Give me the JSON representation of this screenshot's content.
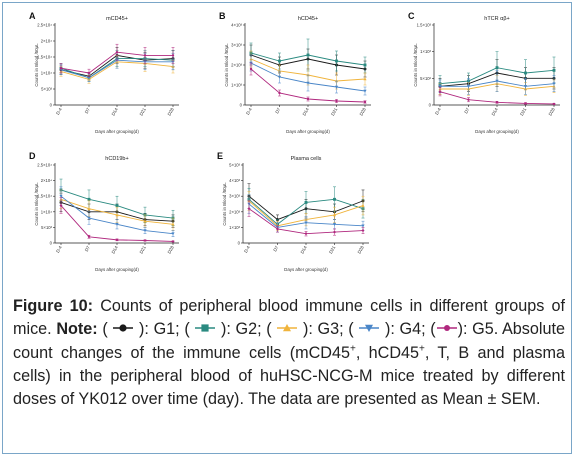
{
  "colors": {
    "G1": "#1a1a1a",
    "G2": "#2a8a80",
    "G3": "#f0b43c",
    "G4": "#4a86c8",
    "G5": "#b0287e",
    "border": "#7aa6c8"
  },
  "caption": {
    "label": "Figure 10:",
    "text1": " Counts of peripheral blood immune cells in different groups of mice. ",
    "note_label": "Note:",
    "legend": [
      {
        "pre": " ( ",
        "group": "G1",
        "post": " ): G1;"
      },
      {
        "pre": " ( ",
        "group": "G2",
        "post": " ): G2;"
      },
      {
        "pre": " ( ",
        "group": "G3",
        "post": " ): G3;"
      },
      {
        "pre": " ( ",
        "group": "G4",
        "post": " ): G4;"
      },
      {
        "pre": " (",
        "group": "G5",
        "post": "): G5."
      }
    ],
    "text2a": " Absolute count changes of the immune cells (mCD45",
    "sup1": "+",
    "text2b": ", hCD45",
    "sup2": "+",
    "text2c": ", T, B and plasma cells) in the peripheral blood of huHSC-NCG-M mice treated by different doses of YK012 over time (day). The data are presented as Mean ± SEM."
  },
  "chart_data": [
    {
      "type": "line",
      "panel": "A",
      "title": "mCD45+",
      "ylabel": "Counts in Blood /50μL",
      "xlabel": "Days after grouping(d)",
      "categories": [
        "D-4",
        "D7",
        "D14",
        "D21",
        "D28"
      ],
      "ylim": [
        0,
        25000
      ],
      "yticks": [
        0,
        5000,
        10000,
        15000,
        20000,
        25000
      ],
      "ytick_labels": [
        "0",
        "5×10³",
        "1×10⁴",
        "1.5×10⁴",
        "2×10⁴",
        "2.5×10⁴"
      ],
      "series": [
        {
          "group": "G1",
          "values": [
            11000,
            9000,
            15500,
            14000,
            14500
          ],
          "err": [
            1500,
            1200,
            2500,
            2500,
            2500
          ]
        },
        {
          "group": "G2",
          "values": [
            11500,
            8500,
            14500,
            14500,
            14000
          ],
          "err": [
            1500,
            1200,
            2500,
            2500,
            3000
          ]
        },
        {
          "group": "G3",
          "values": [
            10500,
            8000,
            13500,
            13000,
            12000
          ],
          "err": [
            1500,
            1200,
            2000,
            2500,
            2000
          ]
        },
        {
          "group": "G4",
          "values": [
            11000,
            8500,
            14000,
            13500,
            13500
          ],
          "err": [
            1500,
            1200,
            2500,
            2500,
            2500
          ]
        },
        {
          "group": "G5",
          "values": [
            11500,
            10000,
            16500,
            15500,
            15500
          ],
          "err": [
            1500,
            1200,
            2500,
            2500,
            2500
          ]
        }
      ]
    },
    {
      "type": "line",
      "panel": "B",
      "title": "hCD45+",
      "ylabel": "Counts in Blood /50μL",
      "xlabel": "Days after grouping(d)",
      "categories": [
        "D-4",
        "D7",
        "D14",
        "D21",
        "D28"
      ],
      "ylim": [
        0,
        4000
      ],
      "yticks": [
        0,
        1000,
        2000,
        3000,
        4000
      ],
      "ytick_labels": [
        "0",
        "1×10³",
        "2×10³",
        "3×10³",
        "4×10³"
      ],
      "series": [
        {
          "group": "G1",
          "values": [
            2500,
            2000,
            2300,
            2000,
            1800
          ],
          "err": [
            500,
            400,
            500,
            500,
            400
          ]
        },
        {
          "group": "G2",
          "values": [
            2600,
            2200,
            2500,
            2200,
            2000
          ],
          "err": [
            500,
            400,
            800,
            500,
            400
          ]
        },
        {
          "group": "G3",
          "values": [
            2300,
            1700,
            1500,
            1200,
            1300
          ],
          "err": [
            400,
            300,
            500,
            400,
            300
          ]
        },
        {
          "group": "G4",
          "values": [
            2100,
            1400,
            1100,
            900,
            700
          ],
          "err": [
            400,
            300,
            400,
            300,
            200
          ]
        },
        {
          "group": "G5",
          "values": [
            1800,
            600,
            300,
            200,
            150
          ],
          "err": [
            300,
            150,
            100,
            80,
            60
          ]
        }
      ]
    },
    {
      "type": "line",
      "panel": "C",
      "title": "hTCR αβ+",
      "ylabel": "Counts in Blood /50μL",
      "xlabel": "Days after grouping(d)",
      "categories": [
        "D-4",
        "D7",
        "D14",
        "D21",
        "D28"
      ],
      "ylim": [
        0,
        1500
      ],
      "yticks": [
        0,
        500,
        1000,
        1500
      ],
      "ytick_labels": [
        "0",
        "5×10²",
        "1×10³",
        "1.5×10³"
      ],
      "series": [
        {
          "group": "G1",
          "values": [
            350,
            400,
            600,
            500,
            500
          ],
          "err": [
            150,
            150,
            250,
            200,
            200
          ]
        },
        {
          "group": "G2",
          "values": [
            400,
            450,
            700,
            600,
            650
          ],
          "err": [
            150,
            150,
            300,
            250,
            250
          ]
        },
        {
          "group": "G3",
          "values": [
            300,
            300,
            400,
            300,
            350
          ],
          "err": [
            100,
            120,
            150,
            120,
            120
          ]
        },
        {
          "group": "G4",
          "values": [
            350,
            350,
            450,
            350,
            400
          ],
          "err": [
            120,
            150,
            200,
            150,
            150
          ]
        },
        {
          "group": "G5",
          "values": [
            250,
            100,
            50,
            30,
            20
          ],
          "err": [
            80,
            40,
            20,
            15,
            10
          ]
        }
      ]
    },
    {
      "type": "line",
      "panel": "D",
      "title": "hCD19b+",
      "ylabel": "Counts in Blood /50μL",
      "xlabel": "Days after grouping(d)",
      "categories": [
        "D-4",
        "D7",
        "D14",
        "D21",
        "D28"
      ],
      "ylim": [
        0,
        25000
      ],
      "yticks": [
        0,
        5000,
        10000,
        15000,
        20000,
        25000
      ],
      "ytick_labels": [
        "0",
        "5×10³",
        "1×10⁴",
        "1.5×10⁴",
        "2×10⁴",
        "2.5×10⁴"
      ],
      "series": [
        {
          "group": "G1",
          "values": [
            13000,
            10000,
            10000,
            7500,
            7000
          ],
          "err": [
            3000,
            2500,
            2500,
            2000,
            2000
          ]
        },
        {
          "group": "G2",
          "values": [
            17000,
            14000,
            12000,
            9000,
            8000
          ],
          "err": [
            3500,
            3000,
            3000,
            2500,
            2500
          ]
        },
        {
          "group": "G3",
          "values": [
            14000,
            11000,
            9000,
            7000,
            6000
          ],
          "err": [
            3000,
            2500,
            2500,
            2000,
            2000
          ]
        },
        {
          "group": "G4",
          "values": [
            15000,
            8000,
            6000,
            4000,
            3000
          ],
          "err": [
            3000,
            2000,
            1500,
            1000,
            1000
          ]
        },
        {
          "group": "G5",
          "values": [
            12000,
            2000,
            1000,
            800,
            500
          ],
          "err": [
            2500,
            500,
            300,
            200,
            150
          ]
        }
      ]
    },
    {
      "type": "line",
      "panel": "E",
      "title": "Plasma cells",
      "ylabel": "Counts in Blood /50μL",
      "xlabel": "Days after grouping(d)",
      "categories": [
        "D-4",
        "D7",
        "D14",
        "D21",
        "D28"
      ],
      "ylim": [
        0,
        5000
      ],
      "yticks": [
        0,
        1000,
        2000,
        3000,
        4000,
        5000
      ],
      "ytick_labels": [
        "0",
        "1×10³",
        "2×10³",
        "3×10³",
        "4×10³",
        "5×10³"
      ],
      "series": [
        {
          "group": "G1",
          "values": [
            3000,
            1500,
            2200,
            2000,
            2700
          ],
          "err": [
            800,
            300,
            600,
            500,
            700
          ]
        },
        {
          "group": "G2",
          "values": [
            2800,
            1200,
            2600,
            2800,
            2200
          ],
          "err": [
            700,
            300,
            700,
            800,
            600
          ]
        },
        {
          "group": "G3",
          "values": [
            2700,
            1100,
            1500,
            1800,
            2400
          ],
          "err": [
            600,
            300,
            400,
            500,
            600
          ]
        },
        {
          "group": "G4",
          "values": [
            2500,
            1000,
            1300,
            1200,
            1100
          ],
          "err": [
            600,
            300,
            400,
            300,
            300
          ]
        },
        {
          "group": "G5",
          "values": [
            2200,
            900,
            600,
            700,
            800
          ],
          "err": [
            500,
            200,
            150,
            200,
            200
          ]
        }
      ]
    }
  ]
}
